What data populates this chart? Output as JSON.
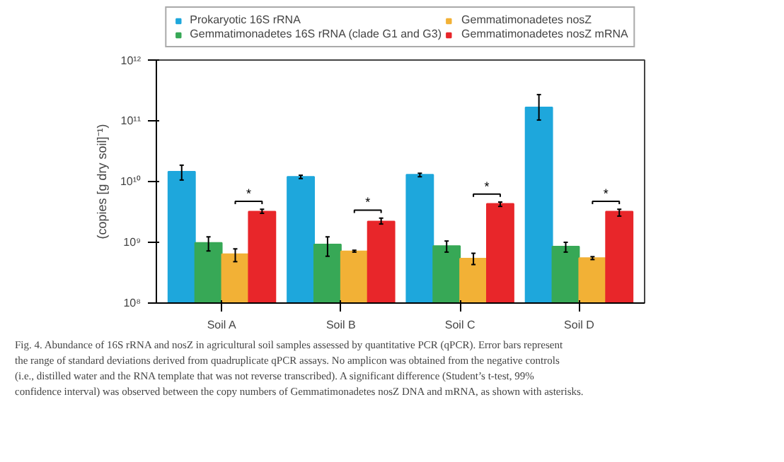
{
  "chart_data": {
    "type": "bar",
    "ylabel": "(copies [g dry soil]⁻¹)",
    "categories": [
      "Soil A",
      "Soil B",
      "Soil C",
      "Soil D"
    ],
    "log": true,
    "ylim": [
      100000000.0,
      1000000000000.0
    ],
    "yticks": [
      {
        "value": 100000000.0,
        "label": "10⁸"
      },
      {
        "value": 1000000000.0,
        "label": "10⁹"
      },
      {
        "value": 10000000000.0,
        "label": "10¹⁰"
      },
      {
        "value": 100000000000.0,
        "label": "10¹¹"
      },
      {
        "value": 1000000000000.0,
        "label": "10¹²"
      }
    ],
    "grid": false,
    "legend": "top",
    "series": [
      {
        "name": "Prokaryotic 16S rRNA",
        "color": "#1ea7dc",
        "values": [
          14500000000.0,
          12000000000.0,
          13000000000.0,
          166000000000.0
        ],
        "errors": [
          [
            10600000000.0,
            18600000000.0
          ],
          [
            11200000000.0,
            12700000000.0
          ],
          [
            12000000000.0,
            13700000000.0
          ],
          [
            103000000000.0,
            270000000000.0
          ]
        ]
      },
      {
        "name": "Gemmatimonadetes 16S rRNA (clade G1 and G3)",
        "color": "#37a856",
        "values": [
          980000000.0,
          920000000.0,
          870000000.0,
          850000000.0
        ],
        "errors": [
          [
            720000000.0,
            1230000000.0
          ],
          [
            590000000.0,
            1230000000.0
          ],
          [
            690000000.0,
            1050000000.0
          ],
          [
            690000000.0,
            1000000000.0
          ]
        ]
      },
      {
        "name": "Gemmatimonadetes nosZ",
        "color": "#f2b136",
        "values": [
          640000000.0,
          710000000.0,
          540000000.0,
          550000000.0
        ],
        "errors": [
          [
            480000000.0,
            780000000.0
          ],
          [
            690000000.0,
            740000000.0
          ],
          [
            430000000.0,
            660000000.0
          ],
          [
            520000000.0,
            580000000.0
          ]
        ]
      },
      {
        "name": "Gemmatimonadetes nosZ mRNA",
        "color": "#e8262a",
        "values": [
          3200000000.0,
          2200000000.0,
          4300000000.0,
          3200000000.0
        ],
        "errors": [
          [
            3000000000.0,
            3500000000.0
          ],
          [
            2000000000.0,
            2500000000.0
          ],
          [
            3900000000.0,
            4600000000.0
          ],
          [
            2700000000.0,
            3500000000.0
          ]
        ]
      }
    ],
    "annotations": [
      "*",
      "*",
      "*",
      "*",
      "Fig. 4.   Abundance of 16S rRNA and nosZ in agricultural soil samples assessed by quantitative PCR (qPCR). Error bars represent the range of standard deviations derived from quadruplicate qPCR assays. No amplicon was obtained from the negative controls (i.e., distilled water and the RNA template that was not reverse transcribed). A significant difference (Student’s t-test, 99% confidence interval) was observed between the copy numbers of Gemmatimonadetes nosZ DNA and mRNA, as shown with asterisks."
    ]
  }
}
